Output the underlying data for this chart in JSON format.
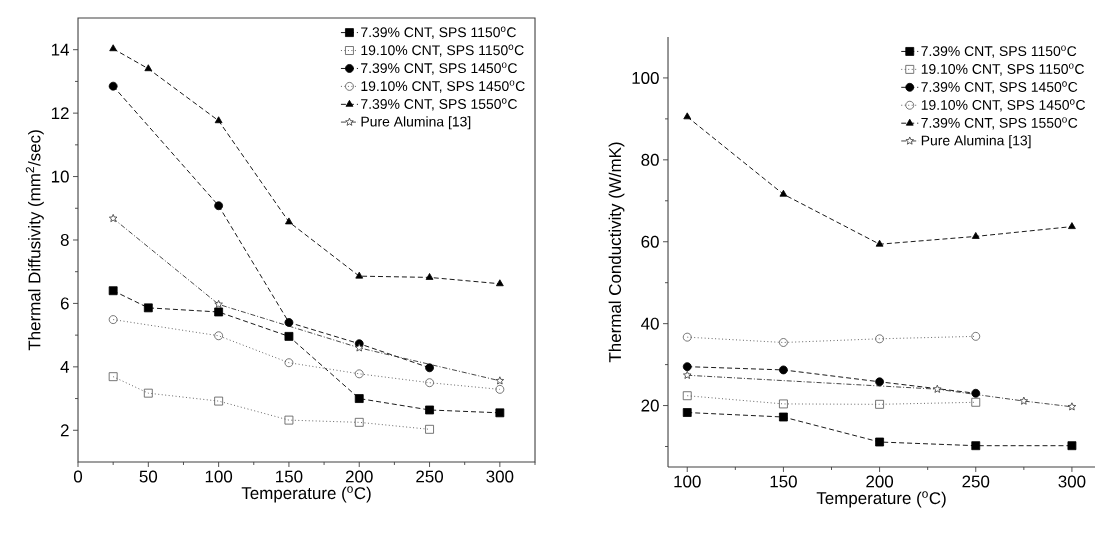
{
  "chart_data": [
    {
      "type": "line",
      "xlabel": "Temperature ($^{o}$C)",
      "ylabel": "Thermal Diffusivity (mm$^{2}$/sec)",
      "xlim": [
        0,
        325
      ],
      "ylim": [
        1,
        15
      ],
      "xticks": [
        0,
        50,
        100,
        150,
        200,
        250,
        300,
        {
          "value": 25,
          "label": null
        },
        {
          "value": 75,
          "label": null
        },
        {
          "value": 125,
          "label": null
        },
        {
          "value": 175,
          "label": null
        },
        {
          "value": 225,
          "label": null
        },
        {
          "value": 275,
          "label": null
        },
        {
          "value": 325,
          "label": null
        }
      ],
      "yticks": [
        2,
        4,
        6,
        8,
        10,
        12,
        14,
        {
          "value": 3,
          "label": null
        },
        {
          "value": 5,
          "label": null
        },
        {
          "value": 7,
          "label": null
        },
        {
          "value": 9,
          "label": null
        },
        {
          "value": 11,
          "label": null
        },
        {
          "value": 13,
          "label": null
        }
      ],
      "legend": "top right",
      "series": [
        {
          "name": "7.39% CNT, SPS 1150$^{o}$C",
          "color": "#000000",
          "marker": "square",
          "line_style": "dashed",
          "x": [
            25,
            50,
            100,
            150,
            200,
            250,
            300
          ],
          "values": [
            6.4,
            5.86,
            5.73,
            4.96,
            3.0,
            2.64,
            2.55
          ]
        },
        {
          "name": "19.10% CNT, SPS 1150$^{o}$C",
          "color": "#555555",
          "marker": "square",
          "line_style": "dotted",
          "x": [
            25,
            50,
            100,
            150,
            200,
            250
          ],
          "values": [
            3.69,
            3.17,
            2.92,
            2.32,
            2.25,
            2.03
          ]
        },
        {
          "name": "7.39% CNT, SPS 1450$^{o}$C",
          "color": "#000000",
          "marker": "circle",
          "line_style": "dashed",
          "x": [
            25,
            100,
            150,
            200,
            250
          ],
          "values": [
            12.85,
            9.08,
            5.4,
            4.73,
            3.97
          ]
        },
        {
          "name": "19.10% CNT, SPS 1450$^{o}$C",
          "color": "#555555",
          "marker": "circle",
          "line_style": "dotted",
          "x": [
            25,
            100,
            150,
            200,
            250,
            300
          ],
          "values": [
            5.49,
            4.98,
            4.13,
            3.78,
            3.5,
            3.29
          ]
        },
        {
          "name": "7.39% CNT, SPS 1550$^{o}$C",
          "color": "#000000",
          "marker": "triangle",
          "line_style": "dashed",
          "x": [
            25,
            50,
            100,
            150,
            200,
            250,
            300
          ],
          "values": [
            14.03,
            13.4,
            11.76,
            8.57,
            6.86,
            6.82,
            6.62
          ]
        },
        {
          "name": "Pure Alumina [13]",
          "color": "#333333",
          "marker": "star",
          "line_style": "dashdot",
          "x": [
            25,
            100,
            200,
            300
          ],
          "values": [
            8.68,
            5.97,
            4.6,
            3.56
          ]
        }
      ]
    },
    {
      "type": "line",
      "xlabel": "Temperature ($^{o}$C)",
      "ylabel": "Thermal Conductivity (W/mK)",
      "xlim": [
        90,
        312
      ],
      "ylim": [
        5,
        110
      ],
      "xticks": [
        100,
        150,
        200,
        250,
        300,
        {
          "value": 125,
          "label": null
        },
        {
          "value": 175,
          "label": null
        },
        {
          "value": 225,
          "label": null
        },
        {
          "value": 275,
          "label": null
        }
      ],
      "yticks": [
        20,
        40,
        60,
        80,
        100,
        {
          "value": 10,
          "label": null
        },
        {
          "value": 30,
          "label": null
        },
        {
          "value": 50,
          "label": null
        },
        {
          "value": 70,
          "label": null
        },
        {
          "value": 90,
          "label": null
        }
      ],
      "legend": "top right",
      "series": [
        {
          "name": "7.39% CNT, SPS 1150$^{o}$C",
          "color": "#000000",
          "marker": "square",
          "line_style": "dashed",
          "x": [
            100,
            150,
            200,
            250,
            300
          ],
          "values": [
            18.3,
            17.2,
            11.1,
            10.2,
            10.2
          ]
        },
        {
          "name": "19.10% CNT, SPS 1150$^{o}$C",
          "color": "#555555",
          "marker": "square",
          "line_style": "dotted",
          "x": [
            100,
            150,
            200,
            250
          ],
          "values": [
            22.4,
            20.4,
            20.3,
            20.8
          ]
        },
        {
          "name": "7.39% CNT, SPS 1450$^{o}$C",
          "color": "#000000",
          "marker": "circle",
          "line_style": "dashed",
          "x": [
            100,
            150,
            200,
            250
          ],
          "values": [
            29.5,
            28.7,
            25.8,
            23.0
          ]
        },
        {
          "name": "19.10% CNT, SPS 1450$^{o}$C",
          "color": "#555555",
          "marker": "circle",
          "line_style": "dotted",
          "x": [
            100,
            150,
            200,
            250
          ],
          "values": [
            36.7,
            35.4,
            36.3,
            36.9
          ]
        },
        {
          "name": "7.39% CNT, SPS 1550$^{o}$C",
          "color": "#000000",
          "marker": "triangle",
          "line_style": "dashed",
          "x": [
            100,
            150,
            200,
            250,
            300
          ],
          "values": [
            90.5,
            71.6,
            59.4,
            61.3,
            63.7
          ]
        },
        {
          "name": "Pure Alumina [13]",
          "color": "#333333",
          "marker": "star",
          "line_style": "dashdot",
          "x": [
            100,
            230,
            275,
            300
          ],
          "values": [
            27.4,
            24.0,
            21.1,
            19.7
          ]
        }
      ]
    }
  ]
}
